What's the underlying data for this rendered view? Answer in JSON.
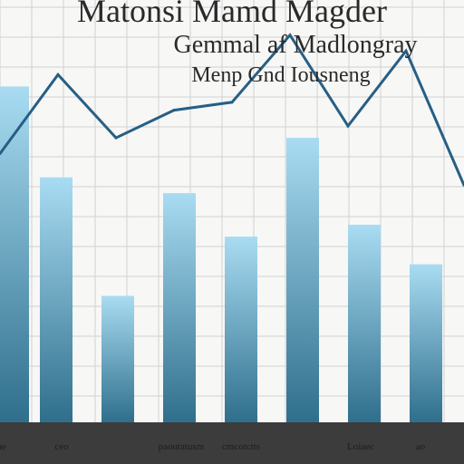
{
  "title": "Matonsi Mamd Magder",
  "subtitle": "Gemmal af Madlongray",
  "subtitle2": "Menp Gnd Iousneng",
  "chart_data": {
    "type": "bar+line",
    "categories": [
      "",
      "",
      "",
      "",
      "",
      "",
      "",
      ""
    ],
    "tick_labels": [
      "ae",
      "ceo",
      "",
      "paoutatusm",
      "cmcotctts",
      "",
      "Loiaec",
      "ao"
    ],
    "bar_values": [
      85,
      62,
      32,
      58,
      47,
      72,
      50,
      40
    ],
    "line_values": [
      68,
      88,
      72,
      79,
      81,
      98,
      75,
      94,
      60
    ],
    "ylim": [
      0,
      100
    ],
    "grid": true,
    "colors": {
      "bar_top": "#a9dcf2",
      "bar_bottom": "#2f6f8c",
      "line": "#265f85",
      "grid": "#d2d2d2",
      "baseline": "#3c3c3c"
    }
  }
}
